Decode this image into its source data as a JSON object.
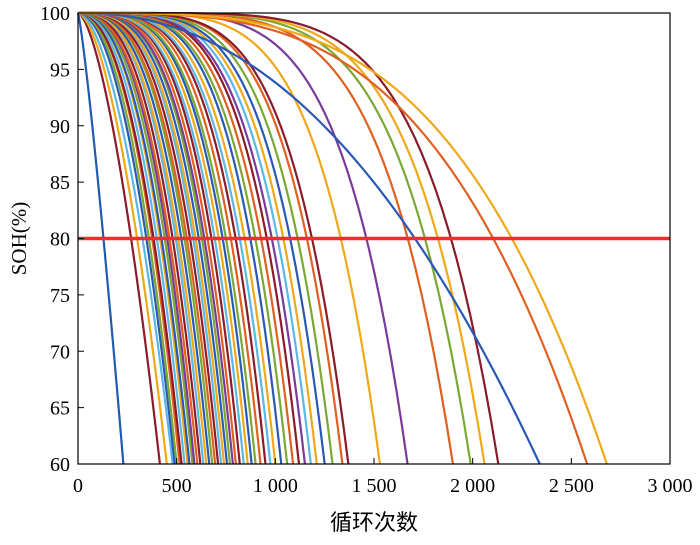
{
  "chart_data": {
    "type": "line",
    "title": "",
    "xlabel": "循环次数",
    "ylabel": "SOH(%)",
    "xlim": [
      0,
      3000
    ],
    "ylim": [
      60,
      100
    ],
    "x_ticks": [
      {
        "value": 0,
        "label": "0"
      },
      {
        "value": 500,
        "label": "500"
      },
      {
        "value": 1000,
        "label": "1 000"
      },
      {
        "value": 1500,
        "label": "1 500"
      },
      {
        "value": 2000,
        "label": "2 000"
      },
      {
        "value": 2500,
        "label": "2 500"
      },
      {
        "value": 3000,
        "label": "3 000"
      }
    ],
    "y_ticks": [
      {
        "value": 60,
        "label": "60"
      },
      {
        "value": 65,
        "label": "65"
      },
      {
        "value": 70,
        "label": "70"
      },
      {
        "value": 75,
        "label": "75"
      },
      {
        "value": 80,
        "label": "80"
      },
      {
        "value": 85,
        "label": "85"
      },
      {
        "value": 90,
        "label": "90"
      },
      {
        "value": 95,
        "label": "95"
      },
      {
        "value": 100,
        "label": "100"
      }
    ],
    "grid": false,
    "legend": "none",
    "threshold": {
      "y": 80,
      "color": "#e8312a"
    },
    "series_style": {
      "start_x": 0,
      "start_y": 100,
      "end_y": 60
    },
    "series": [
      {
        "end_x": 230,
        "shape": 1.2,
        "color": "#1f5bb0"
      },
      {
        "end_x": 415,
        "shape": 1.6,
        "color": "#8b1a2b"
      },
      {
        "end_x": 450,
        "shape": 1.7,
        "color": "#f0a818"
      },
      {
        "end_x": 480,
        "shape": 1.8,
        "color": "#5bb8e6"
      },
      {
        "end_x": 490,
        "shape": 2.0,
        "color": "#2a58b5"
      },
      {
        "end_x": 500,
        "shape": 2.1,
        "color": "#7aa834"
      },
      {
        "end_x": 515,
        "shape": 2.2,
        "color": "#e06020"
      },
      {
        "end_x": 525,
        "shape": 2.2,
        "color": "#8b1a2b"
      },
      {
        "end_x": 540,
        "shape": 2.3,
        "color": "#5bb8e6"
      },
      {
        "end_x": 555,
        "shape": 2.4,
        "color": "#f0a818"
      },
      {
        "end_x": 565,
        "shape": 2.4,
        "color": "#2a58b5"
      },
      {
        "end_x": 580,
        "shape": 2.5,
        "color": "#7aa834"
      },
      {
        "end_x": 590,
        "shape": 2.6,
        "color": "#7a3a9a"
      },
      {
        "end_x": 605,
        "shape": 2.6,
        "color": "#e06020"
      },
      {
        "end_x": 620,
        "shape": 2.7,
        "color": "#8b1a2b"
      },
      {
        "end_x": 635,
        "shape": 2.8,
        "color": "#5bb8e6"
      },
      {
        "end_x": 650,
        "shape": 2.8,
        "color": "#f0a818"
      },
      {
        "end_x": 665,
        "shape": 2.9,
        "color": "#2a58b5"
      },
      {
        "end_x": 680,
        "shape": 3.0,
        "color": "#7aa834"
      },
      {
        "end_x": 695,
        "shape": 3.0,
        "color": "#e06020"
      },
      {
        "end_x": 710,
        "shape": 3.1,
        "color": "#8b1a2b"
      },
      {
        "end_x": 725,
        "shape": 3.2,
        "color": "#5bb8e6"
      },
      {
        "end_x": 740,
        "shape": 3.2,
        "color": "#f0a818"
      },
      {
        "end_x": 755,
        "shape": 3.3,
        "color": "#2a58b5"
      },
      {
        "end_x": 770,
        "shape": 3.4,
        "color": "#7aa834"
      },
      {
        "end_x": 785,
        "shape": 3.4,
        "color": "#7a3a9a"
      },
      {
        "end_x": 800,
        "shape": 3.5,
        "color": "#e06020"
      },
      {
        "end_x": 820,
        "shape": 3.6,
        "color": "#8b1a2b"
      },
      {
        "end_x": 840,
        "shape": 3.6,
        "color": "#5bb8e6"
      },
      {
        "end_x": 860,
        "shape": 3.7,
        "color": "#f0a818"
      },
      {
        "end_x": 880,
        "shape": 3.8,
        "color": "#2a58b5"
      },
      {
        "end_x": 900,
        "shape": 3.8,
        "color": "#7aa834"
      },
      {
        "end_x": 925,
        "shape": 3.9,
        "color": "#e06020"
      },
      {
        "end_x": 950,
        "shape": 4.0,
        "color": "#8b1a2b"
      },
      {
        "end_x": 975,
        "shape": 4.0,
        "color": "#5bb8e6"
      },
      {
        "end_x": 1000,
        "shape": 4.1,
        "color": "#f0a818"
      },
      {
        "end_x": 1030,
        "shape": 4.2,
        "color": "#2a58b5"
      },
      {
        "end_x": 1060,
        "shape": 4.2,
        "color": "#7aa834"
      },
      {
        "end_x": 1090,
        "shape": 4.3,
        "color": "#e06020"
      },
      {
        "end_x": 1120,
        "shape": 4.4,
        "color": "#8b1a2b"
      },
      {
        "end_x": 1150,
        "shape": 4.4,
        "color": "#7a3a9a"
      },
      {
        "end_x": 1180,
        "shape": 4.5,
        "color": "#5bb8e6"
      },
      {
        "end_x": 1210,
        "shape": 4.6,
        "color": "#f0a818"
      },
      {
        "end_x": 1250,
        "shape": 4.6,
        "color": "#2a58b5"
      },
      {
        "end_x": 1290,
        "shape": 4.7,
        "color": "#7aa834"
      },
      {
        "end_x": 1340,
        "shape": 4.8,
        "color": "#e06020"
      },
      {
        "end_x": 1370,
        "shape": 4.8,
        "color": "#8b1a2b"
      },
      {
        "end_x": 1530,
        "shape": 5.0,
        "color": "#f0a818"
      },
      {
        "end_x": 1670,
        "shape": 5.2,
        "color": "#7a3a9a"
      },
      {
        "end_x": 1900,
        "shape": 5.4,
        "color": "#e06020"
      },
      {
        "end_x": 1990,
        "shape": 5.6,
        "color": "#7aa834"
      },
      {
        "end_x": 2060,
        "shape": 5.7,
        "color": "#f0a818"
      },
      {
        "end_x": 2130,
        "shape": 5.8,
        "color": "#8b1a2b"
      },
      {
        "end_x": 2340,
        "shape": 2.2,
        "color": "#2a58b5"
      },
      {
        "end_x": 2580,
        "shape": 3.4,
        "color": "#e06020"
      },
      {
        "end_x": 2680,
        "shape": 3.5,
        "color": "#f0a818"
      }
    ]
  }
}
